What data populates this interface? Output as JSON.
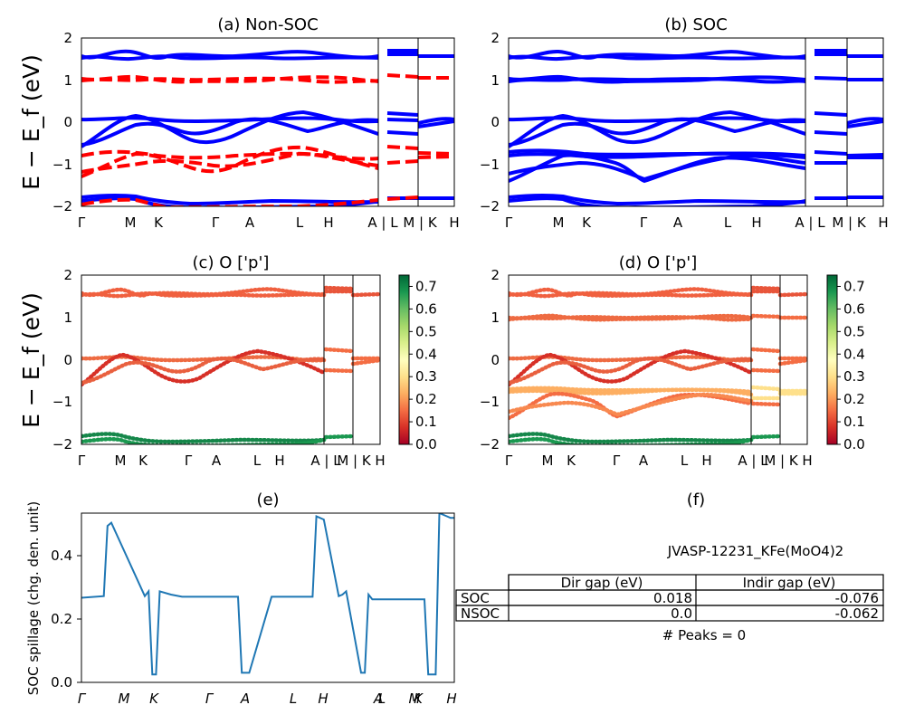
{
  "chart_data": [
    {
      "id": "a",
      "type": "line",
      "title": "(a) Non-SOC",
      "ylabel": "E − E_f (eV)",
      "ylim": [
        -2,
        2
      ],
      "yticks": [
        "−2",
        "−1",
        "0",
        "1",
        "2"
      ],
      "xticks": [
        "Γ",
        "M",
        "K",
        "Γ",
        "A",
        "L",
        "H",
        "A | L",
        "M | K",
        "H"
      ],
      "series": [
        {
          "style": "spin-up",
          "color": "#0000ff",
          "values": [
            1.55,
            1.58,
            0.05,
            -0.58,
            -1.8
          ]
        },
        {
          "style": "spin-down",
          "color": "#ff0000",
          "values": [
            1.0,
            1.05,
            -0.75,
            -1.0,
            -1.3
          ]
        }
      ]
    },
    {
      "id": "b",
      "type": "line",
      "title": "(b) SOC",
      "ylim": [
        -2,
        2
      ],
      "yticks": [
        "−2",
        "−1",
        "0",
        "1",
        "2"
      ],
      "xticks": [
        "Γ",
        "M",
        "K",
        "Γ",
        "A",
        "L",
        "H",
        "A | L",
        "M | K",
        "H"
      ],
      "series": [
        {
          "color": "#0000ff",
          "values": [
            1.55,
            1.0,
            0.05,
            -0.6,
            -0.75,
            -1.4,
            -1.8
          ]
        }
      ]
    },
    {
      "id": "c",
      "type": "scatter",
      "title": "(c)  O ['p']",
      "ylabel": "E − E_f (eV)",
      "ylim": [
        -2,
        2
      ],
      "yticks": [
        "−2",
        "−1",
        "0",
        "1",
        "2"
      ],
      "xticks": [
        "Γ",
        "M",
        "K",
        "Γ",
        "A",
        "L",
        "H",
        "A | L",
        "M | K",
        "H"
      ],
      "colorbar": {
        "cmap": "RdYlGn",
        "range": [
          0.0,
          0.75
        ],
        "ticks": [
          "0.0",
          "0.1",
          "0.2",
          "0.3",
          "0.4",
          "0.5",
          "0.6",
          "0.7"
        ]
      }
    },
    {
      "id": "d",
      "type": "scatter",
      "title": "(d) O ['p']",
      "ylim": [
        -2,
        2
      ],
      "yticks": [
        "−2",
        "−1",
        "0",
        "1",
        "2"
      ],
      "xticks": [
        "Γ",
        "M",
        "K",
        "Γ",
        "A",
        "L",
        "H",
        "A | L",
        "M | K",
        "H"
      ],
      "colorbar": {
        "cmap": "RdYlGn",
        "range": [
          0.0,
          0.75
        ],
        "ticks": [
          "0.0",
          "0.1",
          "0.2",
          "0.3",
          "0.4",
          "0.5",
          "0.6",
          "0.7"
        ]
      }
    },
    {
      "id": "e",
      "type": "line",
      "title": "(e)",
      "ylabel": "SOC spillage (chg. den. unit)",
      "ylim": [
        0,
        0.53
      ],
      "yticks": [
        "0.0",
        "0.2",
        "0.4"
      ],
      "xticks": [
        "Γ",
        "M",
        "K",
        "Γ",
        "A",
        "L",
        "H",
        "A",
        "L",
        "M",
        "K",
        "H"
      ],
      "color": "#1f77b4",
      "x": [
        0,
        6,
        7,
        8,
        17,
        18,
        19,
        20,
        21,
        24,
        27,
        33,
        40,
        42,
        43,
        45,
        51,
        62,
        63,
        65,
        69,
        70,
        71,
        75,
        76,
        77,
        78,
        79,
        80,
        81,
        82,
        87,
        92,
        93,
        95,
        96,
        98,
        99,
        100
      ],
      "y": [
        0.265,
        0.27,
        0.49,
        0.5,
        0.27,
        0.285,
        0.025,
        0.025,
        0.285,
        0.275,
        0.268,
        0.268,
        0.268,
        0.268,
        0.03,
        0.03,
        0.268,
        0.268,
        0.52,
        0.51,
        0.27,
        0.275,
        0.285,
        0.03,
        0.03,
        0.275,
        0.26,
        0.26,
        0.26,
        0.26,
        0.26,
        0.26,
        0.26,
        0.025,
        0.025,
        0.53,
        0.52,
        0.515,
        0.515
      ]
    },
    {
      "id": "f",
      "type": "table",
      "title": "(f)",
      "caption": "JVASP-12231_KFe(MoO4)2",
      "columns": [
        "Dir gap (eV)",
        "Indir gap (eV)"
      ],
      "rows": [
        {
          "label": "SOC",
          "values": [
            "0.018",
            "-0.076"
          ]
        },
        {
          "label": "NSOC",
          "values": [
            "0.0",
            "-0.062"
          ]
        }
      ],
      "footer": "# Peaks = 0"
    }
  ]
}
